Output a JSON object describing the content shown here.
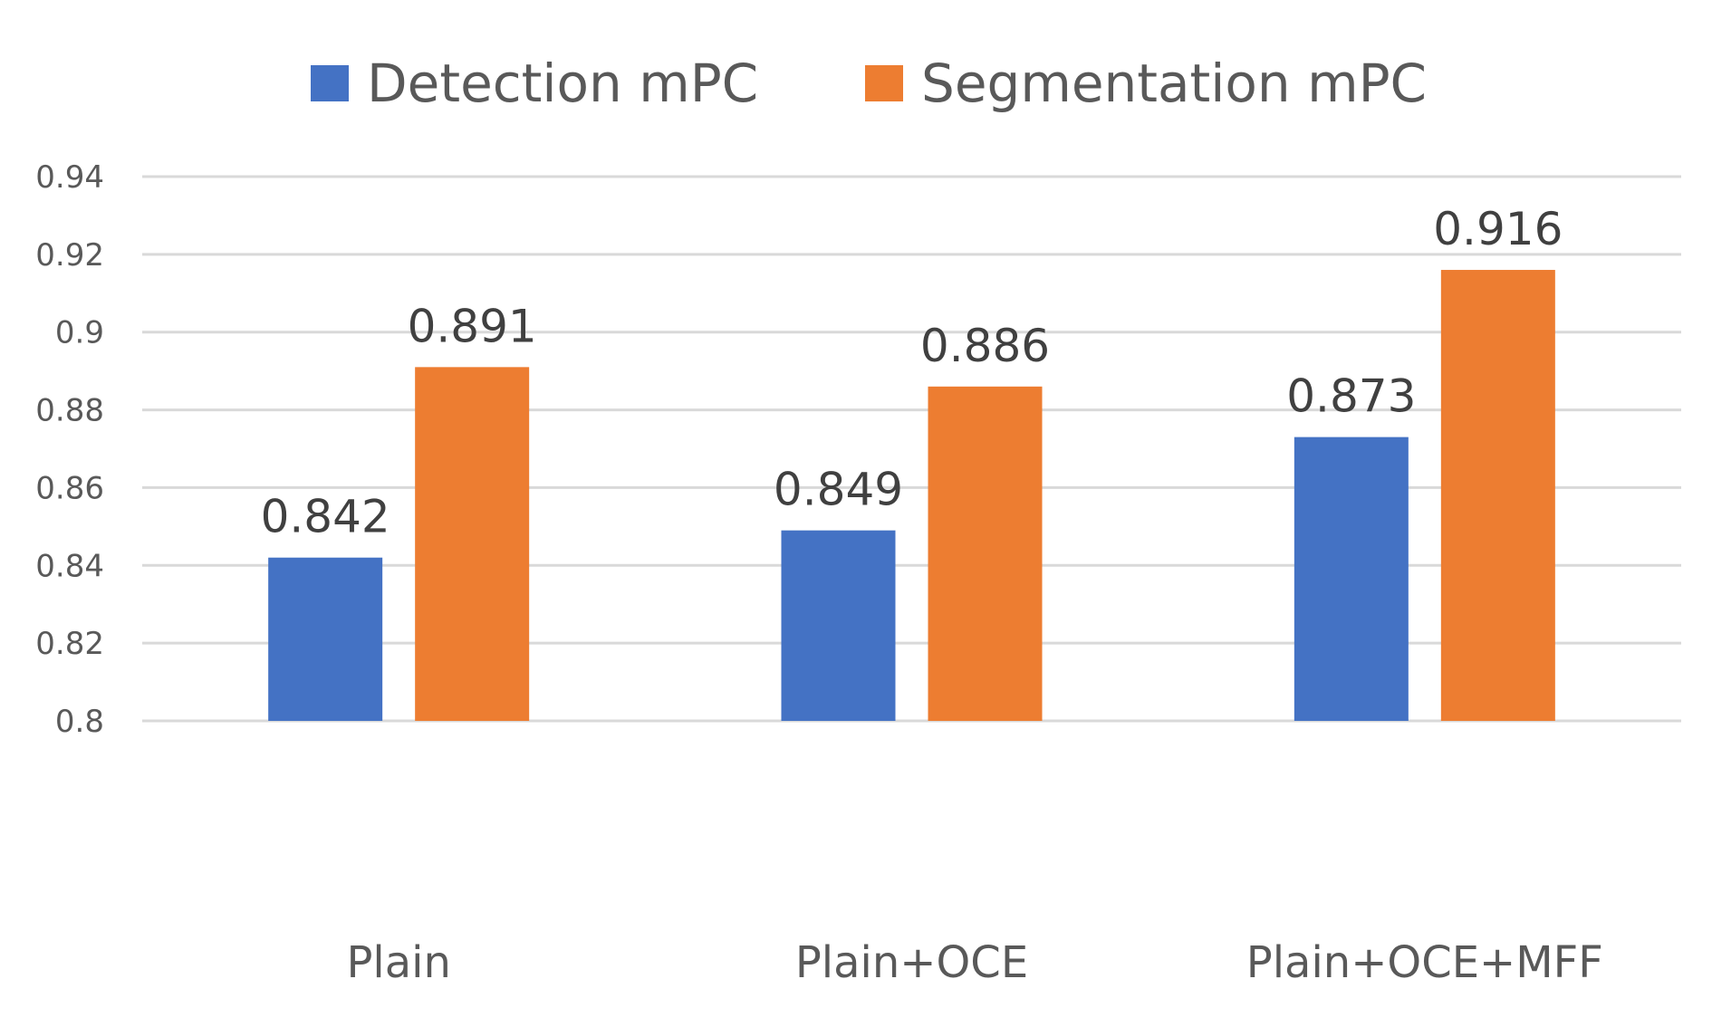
{
  "chart_data": {
    "type": "bar",
    "title": "",
    "xlabel": "",
    "ylabel": "",
    "categories": [
      "Plain",
      "Plain+OCE",
      "Plain+OCE+MFF"
    ],
    "series": [
      {
        "name": "Detection mPC",
        "color": "#4472C4",
        "values": [
          0.842,
          0.849,
          0.873
        ],
        "labels": [
          "0.842",
          "0.849",
          "0.873"
        ]
      },
      {
        "name": "Segmentation mPC",
        "color": "#ED7D31",
        "values": [
          0.891,
          0.886,
          0.916
        ],
        "labels": [
          "0.891",
          "0.886",
          "0.916"
        ]
      }
    ],
    "ylim": [
      0.8,
      0.94
    ],
    "yticks": [
      0.8,
      0.82,
      0.84,
      0.86,
      0.88,
      0.9,
      0.92,
      0.94
    ],
    "ytick_labels": [
      "0.8",
      "0.82",
      "0.84",
      "0.86",
      "0.88",
      "0.9",
      "0.92",
      "0.94"
    ],
    "grid": true,
    "legend_position": "top-center"
  }
}
